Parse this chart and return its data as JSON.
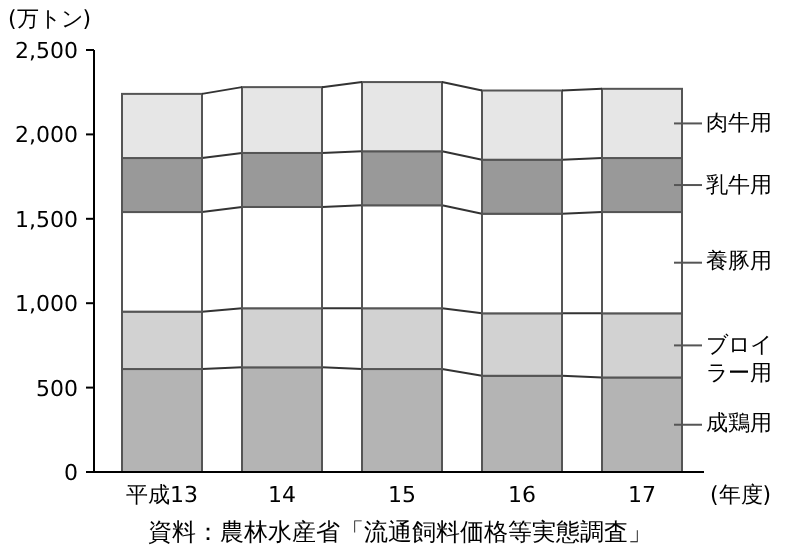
{
  "chart_data": {
    "type": "bar",
    "stacked": true,
    "ylabel": "(万トン)",
    "xlabel": "(年度)",
    "categories": [
      "平成13",
      "14",
      "15",
      "16",
      "17"
    ],
    "series": [
      {
        "name": "成鶏用",
        "color": "#b4b4b4",
        "values": [
          610,
          620,
          610,
          570,
          560
        ]
      },
      {
        "name": "ブロイラー用",
        "color": "#d2d2d2",
        "values": [
          340,
          350,
          360,
          370,
          380
        ]
      },
      {
        "name": "養豚用",
        "color": "#ffffff",
        "values": [
          590,
          600,
          610,
          590,
          600
        ]
      },
      {
        "name": "乳牛用",
        "color": "#999999",
        "values": [
          320,
          320,
          320,
          320,
          320
        ]
      },
      {
        "name": "肉牛用",
        "color": "#e6e6e6",
        "values": [
          380,
          390,
          410,
          410,
          410
        ]
      }
    ],
    "ylim": [
      0,
      2500
    ],
    "yticks": [
      {
        "value": 0,
        "label": "0"
      },
      {
        "value": 500,
        "label": "500"
      },
      {
        "value": 1000,
        "label": "1,000"
      },
      {
        "value": 1500,
        "label": "1,500"
      },
      {
        "value": 2000,
        "label": "2,000"
      },
      {
        "value": 2500,
        "label": "2,500"
      }
    ],
    "grid": false,
    "legend": "right",
    "annotations": [
      "資料：農林水産省「流通飼料価格等実態調査」"
    ]
  }
}
